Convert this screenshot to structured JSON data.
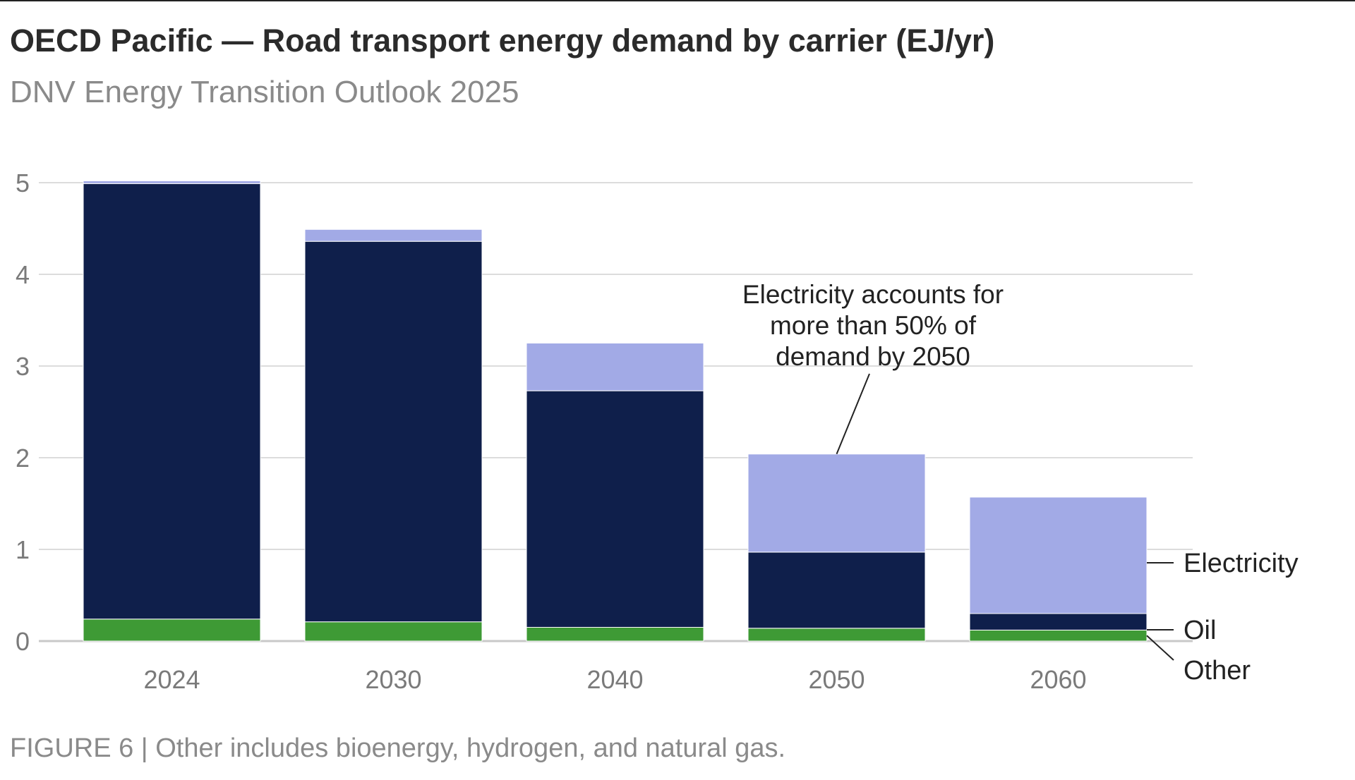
{
  "title": "OECD Pacific — Road transport energy demand by carrier (EJ/yr)",
  "subtitle": "DNV Energy Transition Outlook 2025",
  "footer": "FIGURE 6 | Other includes bioenergy, hydrogen, and natural gas.",
  "chart_data": {
    "type": "bar",
    "stacked": true,
    "categories": [
      "2024",
      "2030",
      "2040",
      "2050",
      "2060"
    ],
    "series": [
      {
        "name": "Other",
        "values": [
          0.24,
          0.21,
          0.15,
          0.14,
          0.12
        ],
        "color": "#3e9a35"
      },
      {
        "name": "Oil",
        "values": [
          4.75,
          4.15,
          2.58,
          0.83,
          0.18
        ],
        "color": "#0f1f4b"
      },
      {
        "name": "Electricity",
        "values": [
          0.03,
          0.13,
          0.52,
          1.07,
          1.27
        ],
        "color": "#a2aae6"
      }
    ],
    "ylim": [
      0,
      5
    ],
    "yticks": [
      "0",
      "1",
      "2",
      "3",
      "4",
      "5"
    ],
    "grid": true,
    "legend": "right, direct labels",
    "annotation": {
      "lines": [
        "Electricity accounts for",
        "more than 50% of",
        "demand by 2050"
      ],
      "target_category": "2050"
    }
  }
}
